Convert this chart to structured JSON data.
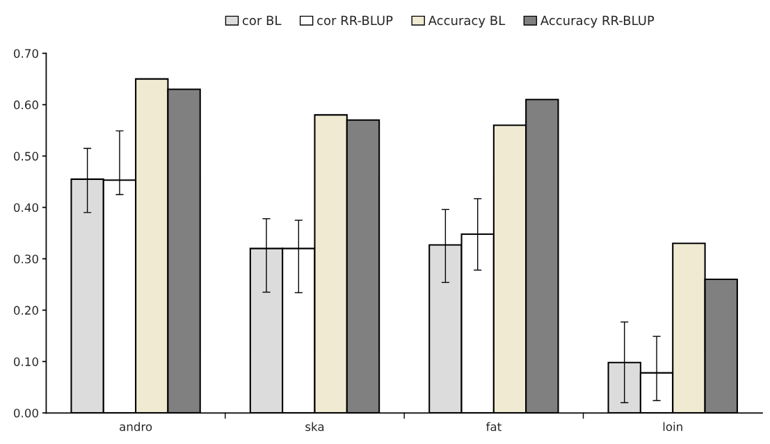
{
  "chart_data": {
    "type": "bar",
    "categories": [
      "andro",
      "ska",
      "fat",
      "loin"
    ],
    "series": [
      {
        "name": "cor BL",
        "color": "#dcdcdc",
        "values": [
          0.455,
          0.32,
          0.327,
          0.098
        ],
        "errors": [
          [
            0.39,
            0.515
          ],
          [
            0.235,
            0.378
          ],
          [
            0.254,
            0.396
          ],
          [
            0.02,
            0.177
          ]
        ]
      },
      {
        "name": "cor RR-BLUP",
        "color": "#ffffff",
        "values": [
          0.453,
          0.32,
          0.348,
          0.078
        ],
        "errors": [
          [
            0.425,
            0.549
          ],
          [
            0.234,
            0.375
          ],
          [
            0.278,
            0.417
          ],
          [
            0.024,
            0.149
          ]
        ]
      },
      {
        "name": "Accuracy BL",
        "color": "#f0ead2",
        "values": [
          0.65,
          0.58,
          0.56,
          0.33
        ]
      },
      {
        "name": "Accuracy RR-BLUP",
        "color": "#808080",
        "values": [
          0.63,
          0.57,
          0.61,
          0.26
        ]
      }
    ],
    "ylim": [
      0,
      0.7
    ],
    "yticks": [
      {
        "value": 0,
        "label": "0.00"
      },
      {
        "value": 0.1,
        "label": "0.10"
      },
      {
        "value": 0.2,
        "label": "0.20"
      },
      {
        "value": 0.3,
        "label": "0.30"
      },
      {
        "value": 0.4,
        "label": "0.40"
      },
      {
        "value": 0.5,
        "label": "0.50"
      },
      {
        "value": 0.6,
        "label": "0.60"
      },
      {
        "value": 0.7,
        "label": "0.70"
      }
    ],
    "grid": false,
    "legend": "top"
  }
}
